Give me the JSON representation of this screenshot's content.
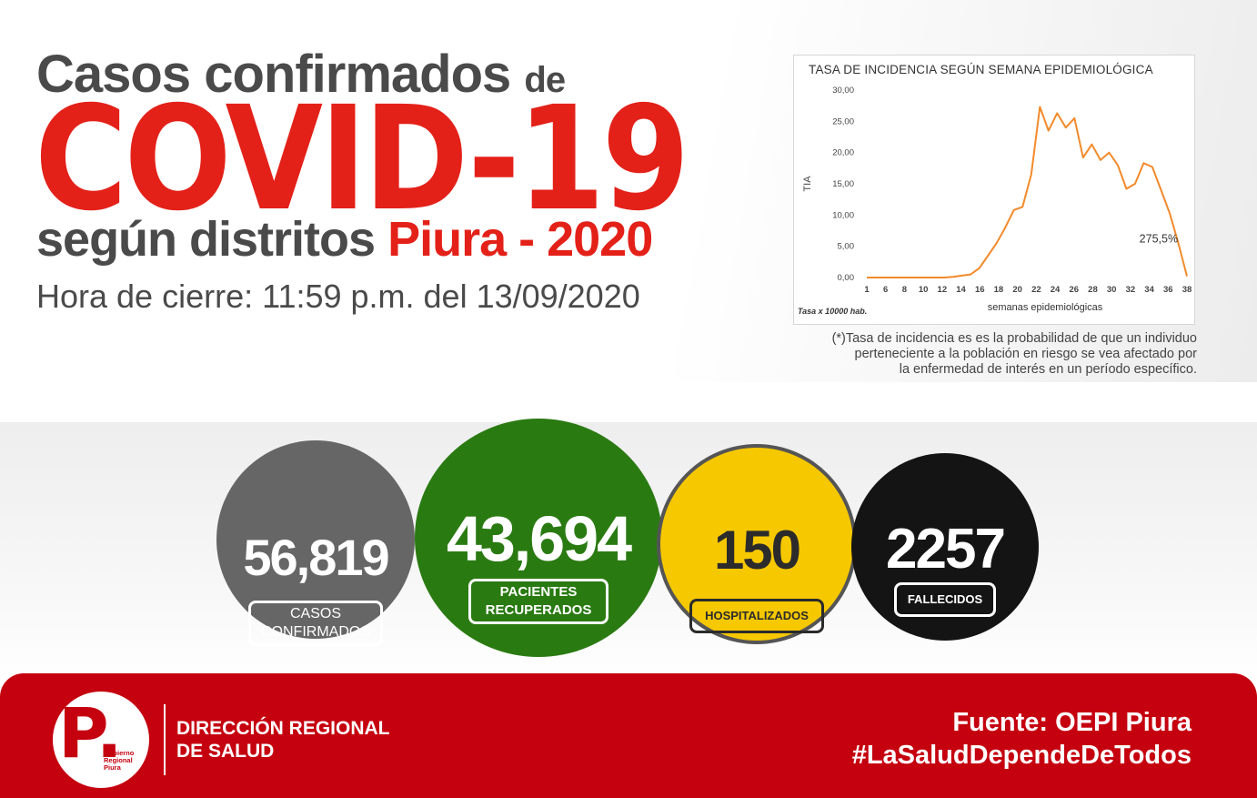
{
  "header": {
    "line1": "Casos confirmados",
    "line1_de": "de",
    "covid": "COVID-19",
    "line3": "según distritos",
    "line3_red": "Piura - 2020",
    "cierre": "Hora de cierre: 11:59 p.m. del 13/09/2020"
  },
  "chart_data": {
    "type": "line",
    "title": "TASA DE INCIDENCIA SEGÚN SEMANA EPIDEMIOLÓGICA",
    "xlabel": "semanas epidemiológicas",
    "ylabel": "TIA",
    "note": "Tasa x 10000 hab.",
    "annotation": "275,5%",
    "color": "#f28a2b",
    "xlim": [
      1,
      38
    ],
    "ylim": [
      0,
      30
    ],
    "x_ticks": [
      "1",
      "6",
      "8",
      "10",
      "12",
      "14",
      "16",
      "18",
      "20",
      "22",
      "24",
      "26",
      "28",
      "30",
      "32",
      "34",
      "36",
      "38"
    ],
    "y_ticks": [
      "0,00",
      "5,00",
      "10,00",
      "15,00",
      "20,00",
      "25,00",
      "30,00"
    ],
    "series": [
      {
        "x": [
          1,
          2,
          3,
          4,
          5,
          6,
          7,
          8,
          9,
          10,
          11,
          12,
          13,
          14,
          15,
          16,
          17,
          18,
          19,
          20,
          21,
          22,
          23,
          24,
          25,
          26,
          27,
          28,
          29,
          30,
          31,
          32,
          33,
          34,
          35,
          36,
          37,
          38
        ],
        "values": [
          0.0,
          0.0,
          0.0,
          0.0,
          0.0,
          0.0,
          0.0,
          0.0,
          0.0,
          0.0,
          0.1,
          0.3,
          0.5,
          1.5,
          3.5,
          5.5,
          8.0,
          10.8,
          11.3,
          16.5,
          27.3,
          23.5,
          26.3,
          24.0,
          25.5,
          19.2,
          21.3,
          18.8,
          20.0,
          18.0,
          14.2,
          15.0,
          18.3,
          17.7,
          14.0,
          10.3,
          5.5,
          0.2
        ]
      }
    ]
  },
  "footnote": [
    "(*)Tasa de incidencia es es la probabilidad de que un individuo",
    "perteneciente a la población en riesgo se vea afectado por",
    "la enfermedad de interés en un período específico."
  ],
  "stats": [
    {
      "value": "56,819",
      "label1": "CASOS",
      "label2": "CONFIRMADOS",
      "color": "#666666",
      "text_color": "#ffffff"
    },
    {
      "value": "43,694",
      "label1": "PACIENTES",
      "label2": "RECUPERADOS",
      "color": "#2a7a12",
      "text_color": "#ffffff"
    },
    {
      "value": "150",
      "label1": "HOSPITALIZADOS",
      "label2": "",
      "color": "#f6c800",
      "text_color": "#2b2b2b"
    },
    {
      "value": "2257",
      "label1": "FALLECIDOS",
      "label2": "",
      "color": "#141414",
      "text_color": "#ffffff"
    }
  ],
  "footer": {
    "logo_letter": "P.",
    "logo_text": [
      "Gobierno",
      "Regional",
      "Piura"
    ],
    "org_line1": "DIRECCIÓN REGIONAL",
    "org_line2": "DE SALUD",
    "fuente": "Fuente: OEPI Piura",
    "hashtag": "#LaSaludDependeDeTodos",
    "bg_color": "#c5000f"
  }
}
